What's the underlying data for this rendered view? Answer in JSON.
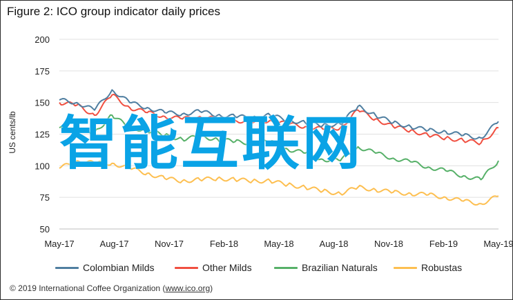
{
  "figure": {
    "title": "Figure 2: ICO group indicator daily prices",
    "footer_prefix": "© 2019 International Coffee Organization (",
    "footer_link": "www.ico.org",
    "footer_suffix": ")",
    "watermark": "智能互联网"
  },
  "chart_data": {
    "type": "line",
    "title": "Figure 2: ICO group indicator daily prices",
    "xlabel": "",
    "ylabel": "US cents/lb",
    "ylim": [
      50,
      200
    ],
    "yticks": [
      50,
      75,
      100,
      125,
      150,
      175,
      200
    ],
    "x_tick_labels": [
      "May-17",
      "Aug-17",
      "Nov-17",
      "Feb-18",
      "May-18",
      "Aug-18",
      "Nov-18",
      "Feb-19",
      "May-19"
    ],
    "grid": true,
    "legend_position": "bottom",
    "x": [
      "2017-05",
      "2017-06",
      "2017-07",
      "2017-08",
      "2017-09",
      "2017-10",
      "2017-11",
      "2017-12",
      "2018-01",
      "2018-02",
      "2018-03",
      "2018-04",
      "2018-05",
      "2018-06",
      "2018-07",
      "2018-08",
      "2018-09",
      "2018-10",
      "2018-11",
      "2018-12",
      "2019-01",
      "2019-02",
      "2019-03",
      "2019-04",
      "2019-05",
      "2019-06"
    ],
    "series": [
      {
        "name": "Colombian Milds",
        "color": "#4f7ea0",
        "values": [
          152,
          150,
          144,
          160,
          150,
          146,
          142,
          141,
          143,
          140,
          139,
          138,
          140,
          136,
          134,
          132,
          133,
          147,
          140,
          134,
          131,
          128,
          127,
          124,
          122,
          135
        ]
      },
      {
        "name": "Other Milds",
        "color": "#f04f40",
        "values": [
          150,
          148,
          140,
          156,
          146,
          142,
          139,
          137,
          139,
          137,
          136,
          134,
          136,
          133,
          131,
          129,
          130,
          144,
          137,
          131,
          128,
          124,
          122,
          120,
          118,
          130
        ]
      },
      {
        "name": "Brazilian Naturals",
        "color": "#56b068",
        "values": [
          130,
          128,
          126,
          140,
          130,
          128,
          124,
          121,
          123,
          121,
          119,
          118,
          119,
          113,
          110,
          105,
          104,
          115,
          110,
          106,
          103,
          99,
          96,
          92,
          89,
          104
        ]
      },
      {
        "name": "Robustas",
        "color": "#fdbf50",
        "values": [
          98,
          104,
          102,
          102,
          98,
          94,
          90,
          88,
          89,
          90,
          89,
          88,
          88,
          85,
          83,
          80,
          78,
          83,
          81,
          79,
          78,
          77,
          75,
          72,
          70,
          76
        ]
      }
    ]
  }
}
